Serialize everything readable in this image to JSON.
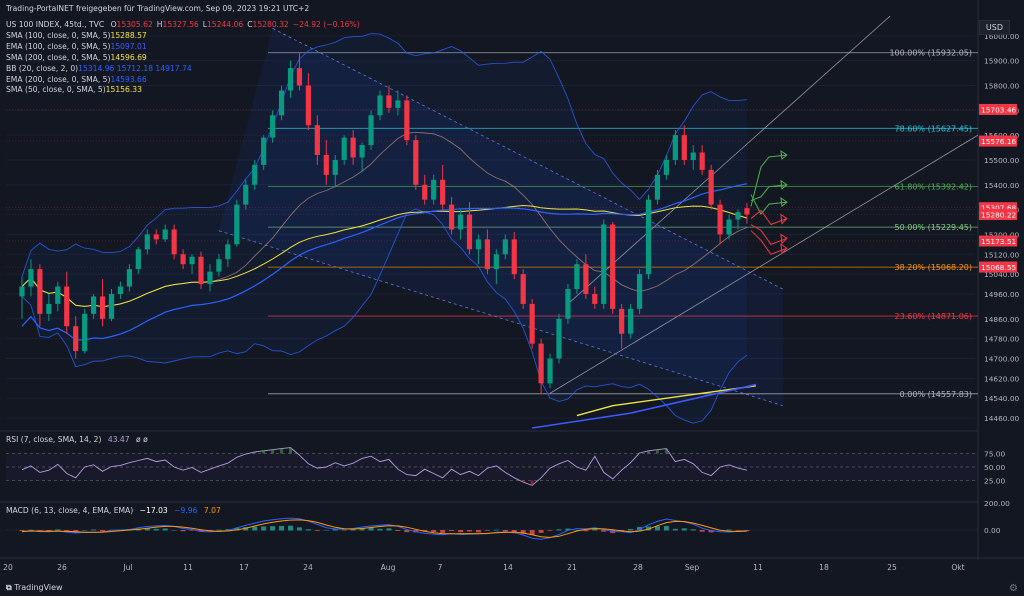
{
  "header": {
    "title": "Trading-PortalNET freigegeben für TradingView.com, Sep 09, 2023 19:21 UTC+2",
    "symbol_line": "US 100 INDEX, 45td., TVC",
    "ohlc": [
      {
        "label": "O",
        "value": "15305.62"
      },
      {
        "label": "H",
        "value": "15327.56"
      },
      {
        "label": "L",
        "value": "15244.06"
      },
      {
        "label": "C",
        "value": "15280.32"
      },
      {
        "label": "",
        "value": "−24.92 (−0.16%)"
      }
    ]
  },
  "indicators": [
    {
      "label": "SMA (100, close, 0, SMA, 5)",
      "value": "15288.57",
      "color": "#f0e442"
    },
    {
      "label": "EMA (100, close, 0, SMA, 5)",
      "value": "15097.01",
      "color": "#3d5afe"
    },
    {
      "label": "SMA (200, close, 0, SMA, 5)",
      "value": "14596.69",
      "color": "#f0e442"
    },
    {
      "label": "BB (20, close, 2, 0)",
      "value": "15314.96  15712.18  14917.74",
      "color": "#2962ff"
    },
    {
      "label": "EMA (200, close, 0, SMA, 5)",
      "value": "14593.66",
      "color": "#2962ff"
    },
    {
      "label": "SMA (50, close, 0, SMA, 5)",
      "value": "15156.33",
      "color": "#f0e442"
    }
  ],
  "currency_label": "USD",
  "footer_brand": "TradingView",
  "chart_data": {
    "type": "candlestick",
    "price_axis": {
      "ylim": [
        14420,
        16080
      ],
      "ticks": [
        16000,
        15900,
        15800,
        15700,
        15600,
        15500,
        15400,
        15300,
        15200,
        15120,
        15040,
        14960,
        14860,
        14780,
        14700,
        14620,
        14540,
        14460
      ],
      "tick_labels": [
        "16000.00",
        "15900.00",
        "15800.00",
        "15700.00",
        "15600.00",
        "15500.00",
        "15400.00",
        "15300.00",
        "15200.00",
        "15120.00",
        "15040.00",
        "14960.00",
        "14860.00",
        "14780.00",
        "14700.00",
        "14620.00",
        "14540.00",
        "14460.00"
      ]
    },
    "time_axis": {
      "labels": [
        "20",
        "26",
        "Jul",
        "11",
        "17",
        "24",
        "Aug",
        "7",
        "14",
        "21",
        "28",
        "Sep",
        "11",
        "18",
        "25",
        "Okt"
      ]
    },
    "price_badges": [
      {
        "value": "15703.46",
        "price": 15703.46,
        "color": "#f23645"
      },
      {
        "value": "15576.16",
        "price": 15576.16,
        "color": "#f23645"
      },
      {
        "value": "15307.68",
        "price": 15307.68,
        "color": "#f23645"
      },
      {
        "value": "15280.22",
        "price": 15280.22,
        "color": "#f23645"
      },
      {
        "value": "15173.51",
        "price": 15173.51,
        "color": "#f23645"
      },
      {
        "value": "15068.55",
        "price": 15068.55,
        "color": "#f23645"
      }
    ],
    "fib_levels": [
      {
        "label": "100.00% (15932.05)",
        "price": 15932.05,
        "color": "#b2b5be"
      },
      {
        "label": "78.60% (15627.45)",
        "price": 15627.45,
        "color": "#26c6da"
      },
      {
        "label": "61.80% (15392.42)",
        "price": 15392.42,
        "color": "#4caf50"
      },
      {
        "label": "50.00% (15229.45)",
        "price": 15229.45,
        "color": "#81c784"
      },
      {
        "label": "38.20% (15068.20)",
        "price": 15068.2,
        "color": "#ff9800"
      },
      {
        "label": "23.60% (14871.06)",
        "price": 14871.06,
        "color": "#f23645"
      },
      {
        "label": "0.00% (14557.83)",
        "price": 14557.83,
        "color": "#b2b5be"
      }
    ],
    "candles": [
      {
        "o": 14950,
        "h": 15030,
        "l": 14860,
        "c": 14990
      },
      {
        "o": 14990,
        "h": 15100,
        "l": 14950,
        "c": 15060
      },
      {
        "o": 15060,
        "h": 15080,
        "l": 14830,
        "c": 14880
      },
      {
        "o": 14880,
        "h": 14960,
        "l": 14850,
        "c": 14920
      },
      {
        "o": 14920,
        "h": 15010,
        "l": 14890,
        "c": 14990
      },
      {
        "o": 14990,
        "h": 15050,
        "l": 14800,
        "c": 14830
      },
      {
        "o": 14830,
        "h": 14870,
        "l": 14700,
        "c": 14730
      },
      {
        "o": 14730,
        "h": 14900,
        "l": 14720,
        "c": 14880
      },
      {
        "o": 14880,
        "h": 14960,
        "l": 14860,
        "c": 14950
      },
      {
        "o": 14950,
        "h": 15020,
        "l": 14830,
        "c": 14860
      },
      {
        "o": 14860,
        "h": 14980,
        "l": 14850,
        "c": 14960
      },
      {
        "o": 14960,
        "h": 15010,
        "l": 14940,
        "c": 14990
      },
      {
        "o": 14990,
        "h": 15080,
        "l": 14970,
        "c": 15060
      },
      {
        "o": 15060,
        "h": 15150,
        "l": 15040,
        "c": 15140
      },
      {
        "o": 15140,
        "h": 15220,
        "l": 15120,
        "c": 15200
      },
      {
        "o": 15200,
        "h": 15220,
        "l": 15160,
        "c": 15180
      },
      {
        "o": 15180,
        "h": 15240,
        "l": 15170,
        "c": 15220
      },
      {
        "o": 15220,
        "h": 15240,
        "l": 15100,
        "c": 15120
      },
      {
        "o": 15120,
        "h": 15140,
        "l": 15060,
        "c": 15080
      },
      {
        "o": 15080,
        "h": 15120,
        "l": 15040,
        "c": 15110
      },
      {
        "o": 15110,
        "h": 15130,
        "l": 14980,
        "c": 15000
      },
      {
        "o": 15000,
        "h": 15080,
        "l": 14970,
        "c": 15050
      },
      {
        "o": 15050,
        "h": 15120,
        "l": 15030,
        "c": 15100
      },
      {
        "o": 15100,
        "h": 15180,
        "l": 15070,
        "c": 15160
      },
      {
        "o": 15160,
        "h": 15340,
        "l": 15150,
        "c": 15320
      },
      {
        "o": 15320,
        "h": 15420,
        "l": 15300,
        "c": 15400
      },
      {
        "o": 15400,
        "h": 15500,
        "l": 15380,
        "c": 15480
      },
      {
        "o": 15480,
        "h": 15600,
        "l": 15460,
        "c": 15590
      },
      {
        "o": 15590,
        "h": 15700,
        "l": 15570,
        "c": 15680
      },
      {
        "o": 15680,
        "h": 15800,
        "l": 15660,
        "c": 15780
      },
      {
        "o": 15780,
        "h": 15900,
        "l": 15750,
        "c": 15870
      },
      {
        "o": 15870,
        "h": 15932,
        "l": 15780,
        "c": 15800
      },
      {
        "o": 15800,
        "h": 15850,
        "l": 15620,
        "c": 15640
      },
      {
        "o": 15640,
        "h": 15680,
        "l": 15480,
        "c": 15520
      },
      {
        "o": 15520,
        "h": 15580,
        "l": 15400,
        "c": 15440
      },
      {
        "o": 15440,
        "h": 15520,
        "l": 15390,
        "c": 15500
      },
      {
        "o": 15500,
        "h": 15600,
        "l": 15480,
        "c": 15590
      },
      {
        "o": 15590,
        "h": 15620,
        "l": 15480,
        "c": 15510
      },
      {
        "o": 15510,
        "h": 15570,
        "l": 15450,
        "c": 15560
      },
      {
        "o": 15560,
        "h": 15700,
        "l": 15540,
        "c": 15680
      },
      {
        "o": 15680,
        "h": 15780,
        "l": 15660,
        "c": 15760
      },
      {
        "o": 15760,
        "h": 15800,
        "l": 15690,
        "c": 15710
      },
      {
        "o": 15710,
        "h": 15780,
        "l": 15680,
        "c": 15740
      },
      {
        "o": 15740,
        "h": 15760,
        "l": 15560,
        "c": 15580
      },
      {
        "o": 15580,
        "h": 15600,
        "l": 15380,
        "c": 15400
      },
      {
        "o": 15400,
        "h": 15440,
        "l": 15320,
        "c": 15340
      },
      {
        "o": 15340,
        "h": 15440,
        "l": 15320,
        "c": 15420
      },
      {
        "o": 15420,
        "h": 15480,
        "l": 15300,
        "c": 15320
      },
      {
        "o": 15320,
        "h": 15350,
        "l": 15200,
        "c": 15220
      },
      {
        "o": 15220,
        "h": 15300,
        "l": 15180,
        "c": 15280
      },
      {
        "o": 15280,
        "h": 15330,
        "l": 15120,
        "c": 15140
      },
      {
        "o": 15140,
        "h": 15200,
        "l": 15080,
        "c": 15180
      },
      {
        "o": 15180,
        "h": 15220,
        "l": 15040,
        "c": 15060
      },
      {
        "o": 15060,
        "h": 15140,
        "l": 15000,
        "c": 15120
      },
      {
        "o": 15120,
        "h": 15200,
        "l": 15100,
        "c": 15180
      },
      {
        "o": 15180,
        "h": 15210,
        "l": 15020,
        "c": 15040
      },
      {
        "o": 15040,
        "h": 15060,
        "l": 14900,
        "c": 14920
      },
      {
        "o": 14920,
        "h": 14940,
        "l": 14740,
        "c": 14760
      },
      {
        "o": 14760,
        "h": 14780,
        "l": 14557,
        "c": 14600
      },
      {
        "o": 14600,
        "h": 14720,
        "l": 14580,
        "c": 14700
      },
      {
        "o": 14700,
        "h": 14880,
        "l": 14680,
        "c": 14860
      },
      {
        "o": 14860,
        "h": 15000,
        "l": 14840,
        "c": 14980
      },
      {
        "o": 14980,
        "h": 15100,
        "l": 14960,
        "c": 15080
      },
      {
        "o": 15080,
        "h": 15120,
        "l": 14940,
        "c": 14960
      },
      {
        "o": 14960,
        "h": 14990,
        "l": 14900,
        "c": 14920
      },
      {
        "o": 14920,
        "h": 15260,
        "l": 14900,
        "c": 15240
      },
      {
        "o": 15240,
        "h": 15250,
        "l": 14880,
        "c": 14900
      },
      {
        "o": 14900,
        "h": 14920,
        "l": 14740,
        "c": 14800
      },
      {
        "o": 14800,
        "h": 14920,
        "l": 14780,
        "c": 14900
      },
      {
        "o": 14900,
        "h": 15060,
        "l": 14880,
        "c": 15040
      },
      {
        "o": 15040,
        "h": 15360,
        "l": 15020,
        "c": 15340
      },
      {
        "o": 15340,
        "h": 15460,
        "l": 15320,
        "c": 15440
      },
      {
        "o": 15440,
        "h": 15520,
        "l": 15420,
        "c": 15500
      },
      {
        "o": 15500,
        "h": 15620,
        "l": 15480,
        "c": 15600
      },
      {
        "o": 15600,
        "h": 15640,
        "l": 15480,
        "c": 15500
      },
      {
        "o": 15500,
        "h": 15560,
        "l": 15460,
        "c": 15530
      },
      {
        "o": 15530,
        "h": 15560,
        "l": 15440,
        "c": 15460
      },
      {
        "o": 15460,
        "h": 15480,
        "l": 15300,
        "c": 15320
      },
      {
        "o": 15320,
        "h": 15340,
        "l": 15160,
        "c": 15200
      },
      {
        "o": 15200,
        "h": 15280,
        "l": 15180,
        "c": 15260
      },
      {
        "o": 15260,
        "h": 15300,
        "l": 15220,
        "c": 15290
      },
      {
        "o": 15305.62,
        "h": 15327.56,
        "l": 15244.06,
        "c": 15280.32
      }
    ],
    "rsi": {
      "label": "RSI (7, close, SMA, 14, 2)",
      "value": "43.47",
      "extra": "ø ø",
      "ticks": [
        "75.00",
        "50.00",
        "25.00"
      ],
      "values": [
        45,
        52,
        40,
        44,
        55,
        38,
        30,
        50,
        54,
        42,
        51,
        53,
        58,
        62,
        66,
        60,
        63,
        50,
        44,
        49,
        40,
        46,
        52,
        57,
        68,
        74,
        78,
        80,
        82,
        84,
        86,
        72,
        56,
        48,
        50,
        58,
        52,
        57,
        66,
        70,
        60,
        64,
        46,
        36,
        34,
        46,
        38,
        30,
        46,
        36,
        42,
        34,
        48,
        52,
        40,
        30,
        22,
        16,
        30,
        48,
        56,
        62,
        50,
        44,
        70,
        40,
        28,
        44,
        58,
        76,
        80,
        82,
        84,
        60,
        64,
        56,
        40,
        34,
        50,
        54,
        48,
        44
      ]
    },
    "macd": {
      "label": "MACD (6, 13, close, 4, EMA, EMA)",
      "values_text": [
        "−17.03",
        "−9.96",
        "7.07"
      ],
      "ticks": [
        "200.00",
        "0.00"
      ]
    }
  }
}
